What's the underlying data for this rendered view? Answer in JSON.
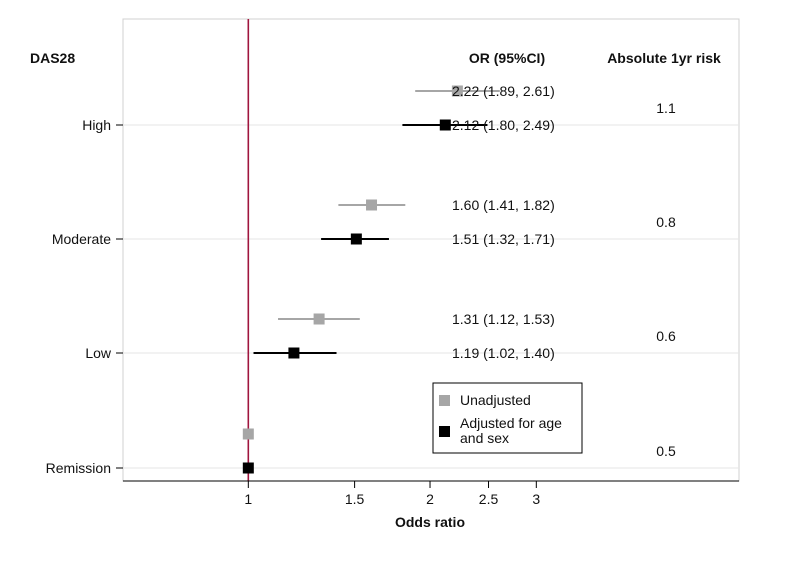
{
  "chart_data": {
    "type": "forest",
    "title": "",
    "row_header": "DAS28",
    "col_header_or": "OR (95%CI)",
    "col_header_risk": "Absolute 1yr risk",
    "xlabel": "Odds ratio",
    "x_scale": "log",
    "xlim": [
      0.62,
      6.5
    ],
    "x_ticks": [
      1,
      1.5,
      2,
      2.5,
      3
    ],
    "x_tick_labels": [
      "1",
      "1.5",
      "2",
      "2.5",
      "3"
    ],
    "reference_line": 1,
    "reference_color": "#a0153e",
    "legend_position": "bottom-center",
    "series": [
      {
        "name": "Unadjusted",
        "color": "#a6a6a6"
      },
      {
        "name": "Adjusted for age and sex",
        "legend_lines": [
          "Adjusted for age",
          "and sex"
        ],
        "color": "#000000"
      }
    ],
    "categories": [
      {
        "label": "High",
        "risk": "1.1",
        "estimates": [
          {
            "series": 0,
            "or": 2.22,
            "lo": 1.89,
            "hi": 2.61,
            "text": "2.22 (1.89, 2.61)"
          },
          {
            "series": 1,
            "or": 2.12,
            "lo": 1.8,
            "hi": 2.49,
            "text": "2.12 (1.80, 2.49)"
          }
        ]
      },
      {
        "label": "Moderate",
        "risk": "0.8",
        "estimates": [
          {
            "series": 0,
            "or": 1.6,
            "lo": 1.41,
            "hi": 1.82,
            "text": "1.60 (1.41, 1.82)"
          },
          {
            "series": 1,
            "or": 1.51,
            "lo": 1.32,
            "hi": 1.71,
            "text": "1.51 (1.32, 1.71)"
          }
        ]
      },
      {
        "label": "Low",
        "risk": "0.6",
        "estimates": [
          {
            "series": 0,
            "or": 1.31,
            "lo": 1.12,
            "hi": 1.53,
            "text": "1.31 (1.12, 1.53)"
          },
          {
            "series": 1,
            "or": 1.19,
            "lo": 1.02,
            "hi": 1.4,
            "text": "1.19 (1.02, 1.40)"
          }
        ]
      },
      {
        "label": "Remission",
        "risk": "0.5",
        "estimates": [
          {
            "series": 0,
            "or": 1,
            "lo": 1,
            "hi": 1,
            "text": ""
          },
          {
            "series": 1,
            "or": 1,
            "lo": 1,
            "hi": 1,
            "text": ""
          }
        ]
      }
    ]
  }
}
